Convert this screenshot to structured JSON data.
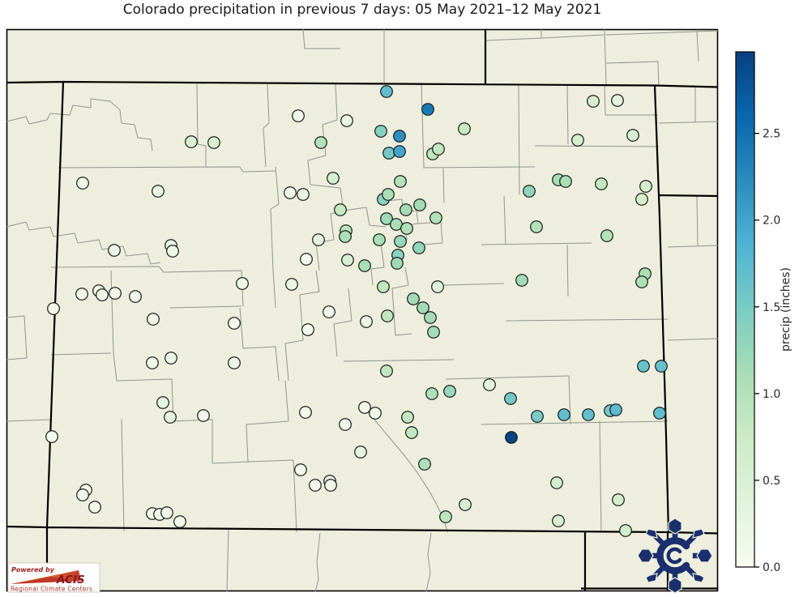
{
  "title": "Colorado precipitation in previous 7 days: 05 May 2021–12 May 2021",
  "colorbar": {
    "label": "precip (inches)",
    "tick_labels": [
      "0.0",
      "0.5",
      "1.0",
      "1.5",
      "2.0",
      "2.5"
    ],
    "tick_values": [
      0.0,
      0.5,
      1.0,
      1.5,
      2.0,
      2.5
    ],
    "min": 0.0,
    "max": 2.97,
    "colormap": "GnBu",
    "gradient_stops": [
      "#f7fcf0",
      "#e0f3db",
      "#ccebc5",
      "#a8ddb5",
      "#7bccc4",
      "#4eb3d3",
      "#2b8cbe",
      "#0868ac",
      "#084081"
    ]
  },
  "map": {
    "background_color": "#edeedd",
    "county_line_color": "#8e958e",
    "state_border_color": "#000000",
    "dot_outline_color": "#1f1f1f"
  },
  "logos": {
    "acis": {
      "powered_by": "Powered by",
      "name": "ACIS",
      "subtitle": "Regional Climate Centers",
      "text_color": "#9b1b1b",
      "swoosh_color_start": "#f5a623",
      "swoosh_color_end": "#c0392b"
    },
    "snowflake": {
      "name": "colorado-climate-center-snowflake",
      "color": "#1b2f6e"
    }
  },
  "chart_data": {
    "type": "scatter",
    "title": "Colorado precipitation in previous 7 days: 05 May 2021–12 May 2021",
    "legend": "colorbar",
    "colorbar_label": "precip (inches)",
    "units": "inches",
    "value_range": [
      0.0,
      2.97
    ],
    "point_format": [
      "x_px",
      "y_px",
      "precip_inches"
    ],
    "points": [
      [
        236,
        175,
        0.5
      ],
      [
        264,
        176,
        0.5
      ],
      [
        102,
        226,
        0.1
      ],
      [
        195,
        236,
        0.25
      ],
      [
        141,
        309,
        0.2
      ],
      [
        211,
        303,
        0.3
      ],
      [
        213,
        310,
        0.2
      ],
      [
        299,
        350,
        0.15
      ],
      [
        101,
        363,
        0.08
      ],
      [
        122,
        359,
        0.2
      ],
      [
        126,
        364,
        0.1
      ],
      [
        142,
        362,
        0.08
      ],
      [
        167,
        366,
        0.08
      ],
      [
        66,
        381,
        0.08
      ],
      [
        189,
        394,
        0.1
      ],
      [
        289,
        399,
        0.08
      ],
      [
        188,
        448,
        0.1
      ],
      [
        211,
        442,
        0.2
      ],
      [
        289,
        448,
        0.15
      ],
      [
        201,
        497,
        0.3
      ],
      [
        210,
        515,
        0.3
      ],
      [
        251,
        513,
        0.15
      ],
      [
        64,
        539,
        0.08
      ],
      [
        106,
        605,
        0.08
      ],
      [
        102,
        611,
        0.08
      ],
      [
        117,
        626,
        0.08
      ],
      [
        188,
        634,
        0.1
      ],
      [
        197,
        635,
        0.1
      ],
      [
        206,
        633,
        0.1
      ],
      [
        222,
        644,
        0.12
      ],
      [
        477,
        113,
        1.7
      ],
      [
        528,
        135,
        2.4
      ],
      [
        368,
        143,
        0.15
      ],
      [
        428,
        149,
        0.25
      ],
      [
        470,
        162,
        1.4
      ],
      [
        493,
        168,
        2.2
      ],
      [
        573,
        159,
        0.8
      ],
      [
        396,
        176,
        1.0
      ],
      [
        480,
        189,
        1.55
      ],
      [
        493,
        187,
        2.0
      ],
      [
        534,
        190,
        0.9
      ],
      [
        541,
        184,
        0.85
      ],
      [
        411,
        220,
        0.55
      ],
      [
        420,
        259,
        0.8
      ],
      [
        358,
        238,
        0.1
      ],
      [
        374,
        240,
        0.25
      ],
      [
        494,
        224,
        1.0
      ],
      [
        473,
        246,
        1.35
      ],
      [
        479,
        240,
        1.1
      ],
      [
        501,
        259,
        1.15
      ],
      [
        518,
        253,
        1.15
      ],
      [
        477,
        270,
        1.2
      ],
      [
        489,
        277,
        1.1
      ],
      [
        538,
        269,
        1.0
      ],
      [
        502,
        282,
        1.05
      ],
      [
        468,
        296,
        1.1
      ],
      [
        494,
        298,
        1.25
      ],
      [
        517,
        306,
        1.3
      ],
      [
        491,
        315,
        1.35
      ],
      [
        490,
        325,
        1.2
      ],
      [
        427,
        285,
        0.9
      ],
      [
        426,
        292,
        1.1
      ],
      [
        393,
        296,
        0.3
      ],
      [
        429,
        321,
        0.55
      ],
      [
        450,
        328,
        1.1
      ],
      [
        378,
        320,
        0.08
      ],
      [
        360,
        351,
        0.2
      ],
      [
        473,
        354,
        0.85
      ],
      [
        540,
        354,
        0.35
      ],
      [
        510,
        369,
        1.15
      ],
      [
        522,
        380,
        1.15
      ],
      [
        406,
        385,
        0.08
      ],
      [
        478,
        390,
        0.85
      ],
      [
        531,
        392,
        1.15
      ],
      [
        452,
        397,
        0.1
      ],
      [
        380,
        407,
        0.08
      ],
      [
        535,
        410,
        1.15
      ],
      [
        477,
        458,
        0.85
      ],
      [
        533,
        486,
        1.05
      ],
      [
        555,
        483,
        1.25
      ],
      [
        732,
        125,
        0.55
      ],
      [
        762,
        124,
        0.35
      ],
      [
        781,
        167,
        0.55
      ],
      [
        713,
        173,
        0.6
      ],
      [
        689,
        222,
        1.1
      ],
      [
        698,
        224,
        1.1
      ],
      [
        742,
        227,
        0.85
      ],
      [
        797,
        230,
        0.6
      ],
      [
        653,
        236,
        1.3
      ],
      [
        792,
        246,
        0.6
      ],
      [
        662,
        280,
        1.0
      ],
      [
        749,
        291,
        1.0
      ],
      [
        644,
        346,
        1.15
      ],
      [
        796,
        338,
        1.1
      ],
      [
        792,
        348,
        1.05
      ],
      [
        794,
        452,
        1.65
      ],
      [
        816,
        452,
        1.65
      ],
      [
        604,
        475,
        0.3
      ],
      [
        630,
        492,
        1.55
      ],
      [
        663,
        514,
        1.5
      ],
      [
        696,
        512,
        1.7
      ],
      [
        726,
        512,
        1.7
      ],
      [
        753,
        507,
        1.55
      ],
      [
        760,
        506,
        1.75
      ],
      [
        814,
        510,
        1.7
      ],
      [
        631,
        540,
        2.95
      ],
      [
        687,
        596,
        0.6
      ],
      [
        763,
        617,
        0.6
      ],
      [
        689,
        643,
        0.55
      ],
      [
        772,
        655,
        0.6
      ],
      [
        377,
        509,
        0.08
      ],
      [
        450,
        503,
        0.1
      ],
      [
        463,
        510,
        0.1
      ],
      [
        426,
        524,
        0.08
      ],
      [
        503,
        515,
        0.85
      ],
      [
        508,
        534,
        0.85
      ],
      [
        445,
        558,
        0.3
      ],
      [
        524,
        573,
        1.05
      ],
      [
        371,
        580,
        0.08
      ],
      [
        407,
        594,
        0.12
      ],
      [
        408,
        599,
        0.1
      ],
      [
        389,
        599,
        0.08
      ],
      [
        574,
        623,
        0.55
      ],
      [
        550,
        638,
        0.9
      ]
    ]
  }
}
